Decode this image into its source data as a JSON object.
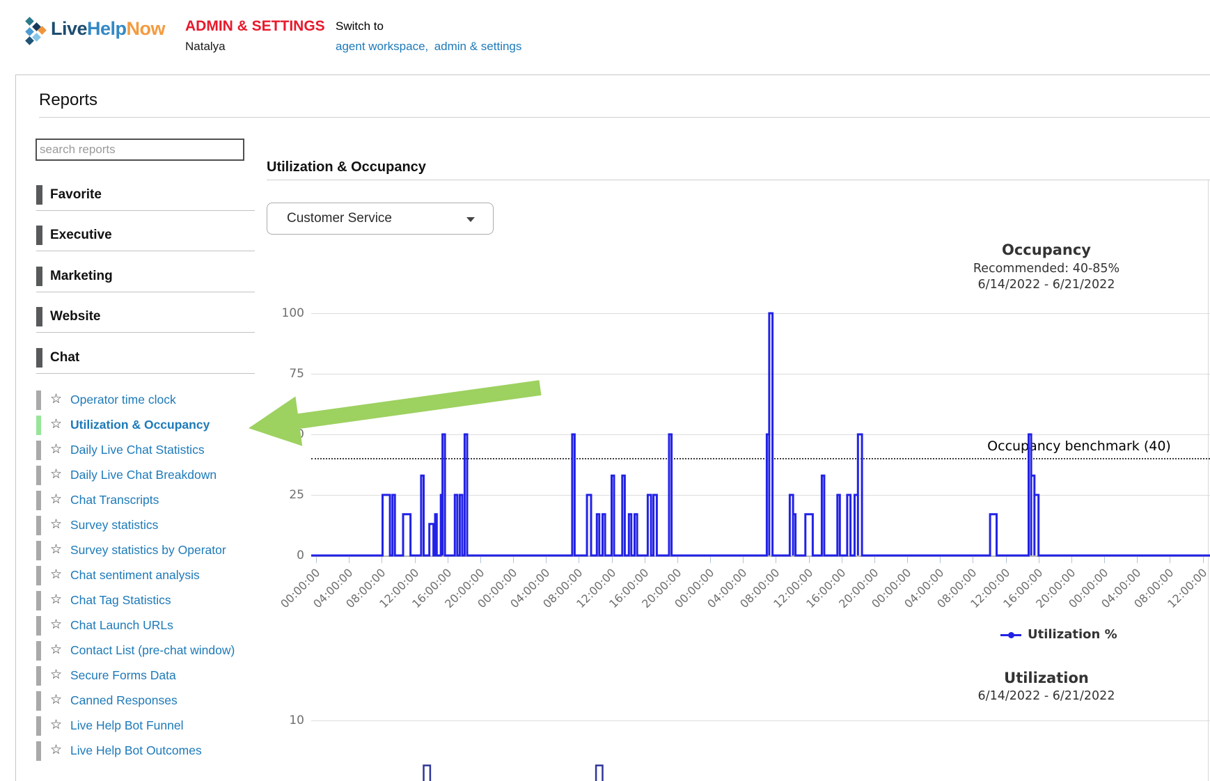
{
  "header": {
    "logo": {
      "text_parts": [
        {
          "text": "Live"
        },
        {
          "text": "Help"
        },
        {
          "text": "Now"
        }
      ],
      "diamond_colors": [
        "#2c7a8c",
        "#16395b",
        "#4b9cd3",
        "#f0953d",
        "#85c6e8",
        "#1f5377"
      ]
    },
    "admin_label": "ADMIN & SETTINGS",
    "user_name": "Natalya",
    "switch_to": "Switch to",
    "links": [
      {
        "label": "agent workspace,"
      },
      {
        "label": "admin & settings"
      }
    ]
  },
  "sidebar": {
    "title": "Reports",
    "search_placeholder": "search reports",
    "categories": [
      "Favorite",
      "Executive",
      "Marketing",
      "Website",
      "Chat"
    ],
    "items": [
      {
        "label": "Operator time clock",
        "selected": false
      },
      {
        "label": "Utilization & Occupancy",
        "selected": true
      },
      {
        "label": "Daily Live Chat Statistics",
        "selected": false
      },
      {
        "label": "Daily Live Chat Breakdown",
        "selected": false
      },
      {
        "label": "Chat Transcripts",
        "selected": false
      },
      {
        "label": "Survey statistics",
        "selected": false
      },
      {
        "label": "Survey statistics by Operator",
        "selected": false
      },
      {
        "label": "Chat sentiment analysis",
        "selected": false
      },
      {
        "label": "Chat Tag Statistics",
        "selected": false
      },
      {
        "label": "Chat Launch URLs",
        "selected": false
      },
      {
        "label": "Contact List (pre-chat window)",
        "selected": false
      },
      {
        "label": "Secure Forms Data",
        "selected": false
      },
      {
        "label": "Canned Responses",
        "selected": false
      },
      {
        "label": "Live Help Bot Funnel",
        "selected": false
      },
      {
        "label": "Live Help Bot Outcomes",
        "selected": false
      }
    ]
  },
  "main": {
    "heading": "Utilization & Occupancy",
    "department_dropdown": {
      "value": "Customer Service"
    }
  },
  "chart_data": [
    {
      "type": "line",
      "title": "Occupancy",
      "subtitle": "Recommended: 40-85%",
      "date_range": "6/14/2022 - 6/21/2022",
      "ylim": [
        0,
        100
      ],
      "y_ticks": [
        0,
        25,
        50,
        75,
        100
      ],
      "grid": "horizontal on",
      "benchmark": {
        "value": 40,
        "label": "Occupancy benchmark (40)"
      },
      "x_ticks": {
        "labels_cycle": [
          "00:00:00",
          "04:00:00",
          "08:00:00",
          "12:00:00",
          "16:00:00",
          "20:00:00"
        ],
        "count": 28,
        "hours_per_tick": 4,
        "days_shown": "7 days, right edge clipped"
      },
      "legend": [
        {
          "label": "Utilization %"
        }
      ],
      "series": [
        {
          "name": "Occupancy %",
          "unit": "percent",
          "baseline": 0,
          "step_segments_hours_value": [
            [
              8.1,
              9.0,
              25
            ],
            [
              9.3,
              9.6,
              25
            ],
            [
              10.6,
              11.5,
              17
            ],
            [
              12.8,
              13.1,
              33
            ],
            [
              13.8,
              14.3,
              13
            ],
            [
              14.5,
              14.7,
              17
            ],
            [
              15.2,
              15.4,
              25
            ],
            [
              15.4,
              15.7,
              50
            ],
            [
              16.9,
              17.2,
              25
            ],
            [
              17.5,
              17.8,
              25
            ],
            [
              18.1,
              18.4,
              50
            ],
            [
              31.2,
              31.5,
              50
            ],
            [
              33.0,
              33.5,
              25
            ],
            [
              34.2,
              34.5,
              17
            ],
            [
              34.9,
              35.2,
              17
            ],
            [
              36.0,
              36.3,
              33
            ],
            [
              37.3,
              37.6,
              33
            ],
            [
              38.1,
              38.4,
              17
            ],
            [
              38.8,
              39.1,
              17
            ],
            [
              40.4,
              40.8,
              25
            ],
            [
              41.1,
              41.5,
              25
            ],
            [
              43.0,
              43.3,
              50
            ],
            [
              54.9,
              55.2,
              50
            ],
            [
              55.2,
              55.6,
              100
            ],
            [
              57.7,
              58.1,
              25
            ],
            [
              58.1,
              58.4,
              17
            ],
            [
              59.6,
              60.5,
              17
            ],
            [
              61.6,
              61.9,
              33
            ],
            [
              63.5,
              63.8,
              25
            ],
            [
              64.7,
              65.1,
              25
            ],
            [
              65.6,
              66.0,
              25
            ],
            [
              66.0,
              66.5,
              50
            ],
            [
              82.1,
              82.9,
              17
            ],
            [
              86.8,
              87.1,
              50
            ],
            [
              87.1,
              87.5,
              33
            ],
            [
              87.5,
              88.0,
              25
            ]
          ]
        }
      ]
    },
    {
      "type": "line",
      "title": "Utilization",
      "date_range": "6/14/2022 - 6/21/2022",
      "y_ticks_visible": [
        10
      ],
      "note": "chart clipped at bottom of screenshot",
      "series": [
        {
          "name": "Utilization",
          "step_segments_hours_value": [
            [
              13.1,
              13.9,
              3.2
            ],
            [
              34.1,
              34.9,
              3.2
            ]
          ]
        }
      ]
    }
  ],
  "colors": {
    "link_blue": "#1d7ab9",
    "admin_red": "#e8192c",
    "arrow_green": "#9dd160",
    "selected_green": "#98e59a",
    "cat_bar": "#58595b",
    "item_bar": "#a9a9a9",
    "chart_blue": "#2222e6",
    "chart2_navy": "#2f3699",
    "logo_live": "#1d4d70",
    "logo_help": "#3389c5",
    "logo_now": "#f39b40"
  }
}
